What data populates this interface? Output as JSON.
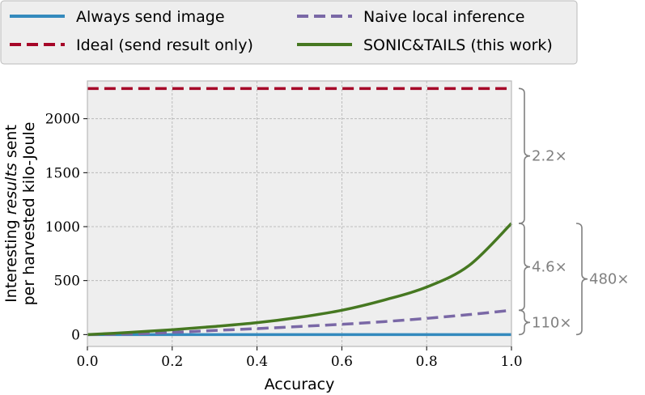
{
  "chart_data": {
    "type": "line",
    "xlabel": "Accuracy",
    "ylabel_line1_pre": "Interesting ",
    "ylabel_line1_italic": "results",
    "ylabel_line1_post": " sent",
    "ylabel_line2": "per harvested kilo-Joule",
    "xlim": [
      0.0,
      1.0
    ],
    "ylim": [
      -110,
      2350
    ],
    "x_ticks": [
      "0.0",
      "0.2",
      "0.4",
      "0.6",
      "0.8",
      "1.0"
    ],
    "y_ticks": [
      "0",
      "500",
      "1000",
      "1500",
      "2000"
    ],
    "grid": true,
    "legend_position": "top",
    "series": [
      {
        "name": "Always send image",
        "color": "#348ABD",
        "style": "solid",
        "x": [
          0.0,
          1.0
        ],
        "y": [
          0,
          0
        ]
      },
      {
        "name": "Naive local inference",
        "color": "#7A68A6",
        "style": "dashed",
        "x": [
          0.0,
          0.1,
          0.2,
          0.3,
          0.4,
          0.5,
          0.6,
          0.7,
          0.8,
          0.9,
          1.0
        ],
        "y": [
          0,
          5,
          20,
          38,
          55,
          75,
          95,
          120,
          150,
          185,
          225
        ]
      },
      {
        "name": "Ideal (send result only)",
        "color": "#A60628",
        "style": "dashed",
        "x": [
          0.0,
          1.0
        ],
        "y": [
          2280,
          2280
        ]
      },
      {
        "name": "SONIC&TAILS (this work)",
        "color": "#467821",
        "style": "solid",
        "x": [
          0.0,
          0.1,
          0.2,
          0.3,
          0.4,
          0.5,
          0.6,
          0.7,
          0.8,
          0.9,
          1.0
        ],
        "y": [
          0,
          20,
          45,
          75,
          110,
          160,
          225,
          320,
          440,
          640,
          1030
        ]
      }
    ],
    "annotations": [
      {
        "label": "2.2×",
        "y_from": 1030,
        "y_to": 2280,
        "level": 1
      },
      {
        "label": "4.6×",
        "y_from": 225,
        "y_to": 1030,
        "level": 1
      },
      {
        "label": "110×",
        "y_from": 0,
        "y_to": 225,
        "level": 1
      },
      {
        "label": "480×",
        "y_from": 0,
        "y_to": 1030,
        "level": 2
      }
    ]
  }
}
